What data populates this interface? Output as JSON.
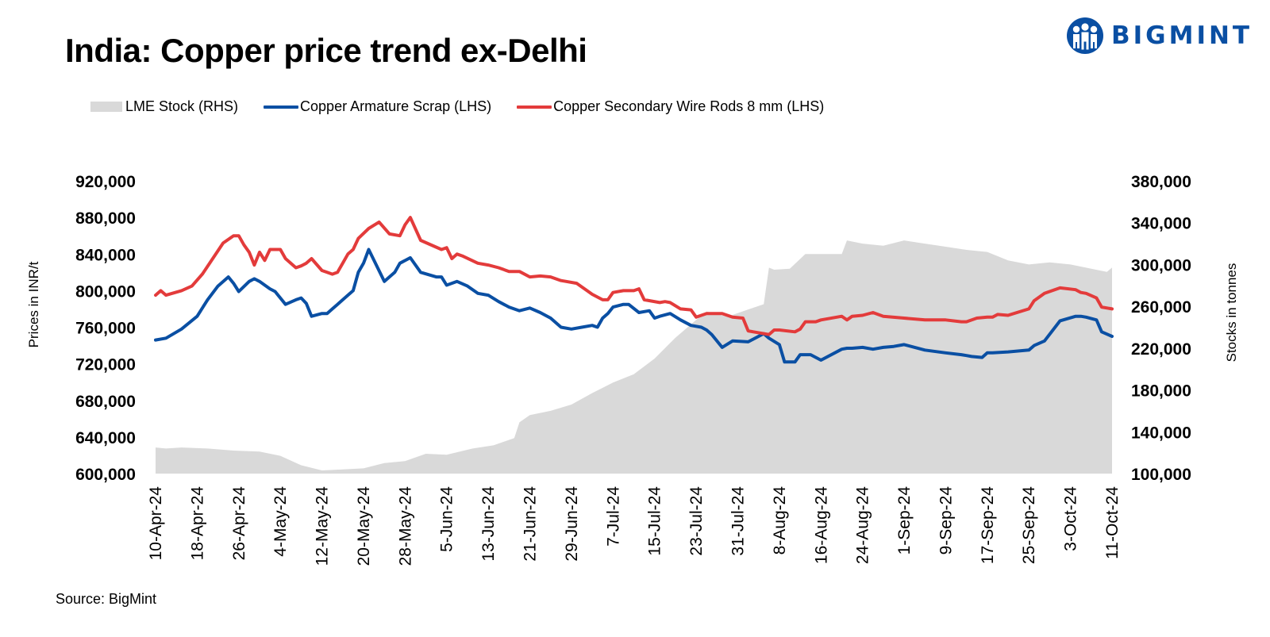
{
  "header": {
    "title": "India: Copper price trend ex-Delhi"
  },
  "logo": {
    "text": "BIGMINT",
    "icon": "people-group-icon",
    "color": "#0a4fa3"
  },
  "footer": {
    "source": "Source: BigMint"
  },
  "chart_data": {
    "type": "line",
    "title": "India: Copper price trend ex-Delhi",
    "ylabel": "Prices in INR/t",
    "y2label": "Stocks in tonnes",
    "ylim": [
      600000,
      920000
    ],
    "y2lim": [
      100000,
      380000
    ],
    "yticks": [
      "600,000",
      "640,000",
      "680,000",
      "720,000",
      "760,000",
      "800,000",
      "840,000",
      "880,000",
      "920,000"
    ],
    "y2ticks": [
      "100,000",
      "140,000",
      "180,000",
      "220,000",
      "260,000",
      "300,000",
      "340,000",
      "380,000"
    ],
    "x_start": "2024-04-10",
    "x_end": "2024-10-11",
    "xticks": [
      "10-Apr-24",
      "18-Apr-24",
      "26-Apr-24",
      "4-May-24",
      "12-May-24",
      "20-May-24",
      "28-May-24",
      "5-Jun-24",
      "13-Jun-24",
      "21-Jun-24",
      "29-Jun-24",
      "7-Jul-24",
      "15-Jul-24",
      "23-Jul-24",
      "31-Jul-24",
      "8-Aug-24",
      "16-Aug-24",
      "24-Aug-24",
      "1-Sep-24",
      "9-Sep-24",
      "17-Sep-24",
      "25-Sep-24",
      "3-Oct-24",
      "11-Oct-24"
    ],
    "legend_position": "top",
    "series": [
      {
        "name": "LME Stock (RHS)",
        "type": "area",
        "axis": "right",
        "color": "#d9d9d9",
        "x": [
          "2024-04-10",
          "2024-04-12",
          "2024-04-15",
          "2024-04-20",
          "2024-04-25",
          "2024-04-30",
          "2024-05-04",
          "2024-05-08",
          "2024-05-12",
          "2024-05-16",
          "2024-05-20",
          "2024-05-24",
          "2024-05-28",
          "2024-06-01",
          "2024-06-05",
          "2024-06-10",
          "2024-06-14",
          "2024-06-18",
          "2024-06-19",
          "2024-06-21",
          "2024-06-25",
          "2024-06-29",
          "2024-07-03",
          "2024-07-07",
          "2024-07-11",
          "2024-07-15",
          "2024-07-19",
          "2024-07-23",
          "2024-07-25",
          "2024-07-29",
          "2024-08-02",
          "2024-08-05",
          "2024-08-06",
          "2024-08-07",
          "2024-08-10",
          "2024-08-13",
          "2024-08-16",
          "2024-08-20",
          "2024-08-21",
          "2024-08-24",
          "2024-08-28",
          "2024-09-01",
          "2024-09-05",
          "2024-09-09",
          "2024-09-13",
          "2024-09-17",
          "2024-09-21",
          "2024-09-25",
          "2024-09-29",
          "2024-10-03",
          "2024-10-07",
          "2024-10-10",
          "2024-10-11"
        ],
        "values": [
          125000,
          124000,
          125000,
          124000,
          122000,
          121000,
          117000,
          108000,
          103000,
          104000,
          105000,
          110000,
          112000,
          119000,
          118000,
          124000,
          127000,
          134000,
          149000,
          156000,
          160000,
          166000,
          177000,
          187000,
          195000,
          210000,
          230000,
          247000,
          255000,
          250000,
          257000,
          262000,
          297000,
          295000,
          296000,
          310000,
          310000,
          310000,
          323000,
          320000,
          318000,
          323000,
          320000,
          317000,
          314000,
          312000,
          304000,
          300000,
          302000,
          300000,
          296000,
          293000,
          297000
        ]
      },
      {
        "name": "Copper Armature Scrap (LHS)",
        "type": "line",
        "axis": "left",
        "color": "#0a4fa3",
        "x": [
          "2024-04-10",
          "2024-04-12",
          "2024-04-15",
          "2024-04-18",
          "2024-04-20",
          "2024-04-22",
          "2024-04-24",
          "2024-04-25",
          "2024-04-26",
          "2024-04-28",
          "2024-04-29",
          "2024-04-30",
          "2024-05-02",
          "2024-05-03",
          "2024-05-05",
          "2024-05-07",
          "2024-05-08",
          "2024-05-09",
          "2024-05-10",
          "2024-05-12",
          "2024-05-13",
          "2024-05-14",
          "2024-05-15",
          "2024-05-17",
          "2024-05-18",
          "2024-05-19",
          "2024-05-20",
          "2024-05-21",
          "2024-05-24",
          "2024-05-26",
          "2024-05-27",
          "2024-05-29",
          "2024-05-31",
          "2024-06-03",
          "2024-06-04",
          "2024-06-05",
          "2024-06-07",
          "2024-06-09",
          "2024-06-11",
          "2024-06-13",
          "2024-06-15",
          "2024-06-17",
          "2024-06-19",
          "2024-06-21",
          "2024-06-23",
          "2024-06-25",
          "2024-06-27",
          "2024-06-29",
          "2024-07-01",
          "2024-07-03",
          "2024-07-04",
          "2024-07-05",
          "2024-07-06",
          "2024-07-07",
          "2024-07-09",
          "2024-07-10",
          "2024-07-12",
          "2024-07-14",
          "2024-07-15",
          "2024-07-16",
          "2024-07-18",
          "2024-07-20",
          "2024-07-22",
          "2024-07-24",
          "2024-07-25",
          "2024-07-26",
          "2024-07-28",
          "2024-07-30",
          "2024-08-02",
          "2024-08-04",
          "2024-08-05",
          "2024-08-06",
          "2024-08-08",
          "2024-08-09",
          "2024-08-11",
          "2024-08-12",
          "2024-08-13",
          "2024-08-14",
          "2024-08-16",
          "2024-08-20",
          "2024-08-21",
          "2024-08-22",
          "2024-08-24",
          "2024-08-26",
          "2024-08-28",
          "2024-08-30",
          "2024-09-01",
          "2024-09-05",
          "2024-09-09",
          "2024-09-12",
          "2024-09-13",
          "2024-09-14",
          "2024-09-16",
          "2024-09-17",
          "2024-09-18",
          "2024-09-21",
          "2024-09-25",
          "2024-09-26",
          "2024-09-28",
          "2024-10-01",
          "2024-10-04",
          "2024-10-05",
          "2024-10-06",
          "2024-10-08",
          "2024-10-09",
          "2024-10-11"
        ],
        "values": [
          746000,
          748000,
          758000,
          772000,
          790000,
          805000,
          815000,
          808000,
          799000,
          810000,
          813000,
          810000,
          802000,
          799000,
          785000,
          790000,
          792000,
          786000,
          772000,
          775000,
          775000,
          780000,
          785000,
          795000,
          800000,
          820000,
          830000,
          845000,
          810000,
          820000,
          830000,
          836000,
          820000,
          815000,
          815000,
          806000,
          810000,
          805000,
          797000,
          795000,
          788000,
          782000,
          778000,
          781000,
          776000,
          770000,
          760000,
          758000,
          760000,
          762000,
          760000,
          770000,
          775000,
          782000,
          785000,
          785000,
          776000,
          778000,
          770000,
          772000,
          775000,
          768000,
          762000,
          760000,
          757000,
          752000,
          738000,
          745000,
          744000,
          750000,
          753000,
          748000,
          741000,
          722000,
          722000,
          730000,
          730000,
          730000,
          724000,
          736000,
          737000,
          737000,
          738000,
          736000,
          738000,
          739000,
          741000,
          735000,
          732000,
          730000,
          729000,
          728000,
          727000,
          732000,
          732000,
          733000,
          735000,
          740000,
          745000,
          767000,
          772000,
          772000,
          771000,
          768000,
          755000,
          750000
        ]
      },
      {
        "name": "Copper Secondary Wire Rods 8 mm (LHS)",
        "type": "line",
        "axis": "left",
        "color": "#e33b3b",
        "x": [
          "2024-04-10",
          "2024-04-11",
          "2024-04-12",
          "2024-04-15",
          "2024-04-17",
          "2024-04-19",
          "2024-04-21",
          "2024-04-23",
          "2024-04-25",
          "2024-04-26",
          "2024-04-27",
          "2024-04-28",
          "2024-04-29",
          "2024-04-30",
          "2024-05-01",
          "2024-05-02",
          "2024-05-04",
          "2024-05-05",
          "2024-05-07",
          "2024-05-08",
          "2024-05-09",
          "2024-05-10",
          "2024-05-12",
          "2024-05-13",
          "2024-05-14",
          "2024-05-15",
          "2024-05-16",
          "2024-05-17",
          "2024-05-18",
          "2024-05-19",
          "2024-05-21",
          "2024-05-23",
          "2024-05-25",
          "2024-05-27",
          "2024-05-28",
          "2024-05-29",
          "2024-05-31",
          "2024-06-04",
          "2024-06-05",
          "2024-06-06",
          "2024-06-07",
          "2024-06-08",
          "2024-06-11",
          "2024-06-13",
          "2024-06-15",
          "2024-06-17",
          "2024-06-19",
          "2024-06-21",
          "2024-06-23",
          "2024-06-25",
          "2024-06-27",
          "2024-06-28",
          "2024-06-30",
          "2024-07-02",
          "2024-07-03",
          "2024-07-05",
          "2024-07-06",
          "2024-07-07",
          "2024-07-09",
          "2024-07-11",
          "2024-07-12",
          "2024-07-13",
          "2024-07-16",
          "2024-07-17",
          "2024-07-18",
          "2024-07-20",
          "2024-07-22",
          "2024-07-23",
          "2024-07-25",
          "2024-07-26",
          "2024-07-28",
          "2024-07-30",
          "2024-08-01",
          "2024-08-02",
          "2024-08-03",
          "2024-08-06",
          "2024-08-07",
          "2024-08-08",
          "2024-08-11",
          "2024-08-12",
          "2024-08-13",
          "2024-08-15",
          "2024-08-16",
          "2024-08-20",
          "2024-08-21",
          "2024-08-22",
          "2024-08-24",
          "2024-08-26",
          "2024-08-28",
          "2024-09-01",
          "2024-09-05",
          "2024-09-09",
          "2024-09-12",
          "2024-09-13",
          "2024-09-15",
          "2024-09-17",
          "2024-09-18",
          "2024-09-19",
          "2024-09-21",
          "2024-09-25",
          "2024-09-26",
          "2024-09-28",
          "2024-10-01",
          "2024-10-04",
          "2024-10-05",
          "2024-10-06",
          "2024-10-08",
          "2024-10-09",
          "2024-10-11"
        ],
        "values": [
          795000,
          800000,
          795000,
          800000,
          805000,
          818000,
          835000,
          852000,
          860000,
          860000,
          850000,
          842000,
          828000,
          842000,
          833000,
          845000,
          845000,
          835000,
          825000,
          827000,
          830000,
          835000,
          822000,
          820000,
          818000,
          820000,
          830000,
          840000,
          845000,
          857000,
          868000,
          875000,
          862000,
          860000,
          872000,
          880000,
          855000,
          845000,
          847000,
          835000,
          840000,
          838000,
          830000,
          828000,
          825000,
          821000,
          821000,
          815000,
          816000,
          815000,
          811000,
          810000,
          808000,
          800000,
          796000,
          790000,
          790000,
          798000,
          800000,
          800000,
          802000,
          790000,
          787000,
          788000,
          787000,
          780000,
          779000,
          771000,
          775000,
          775000,
          775000,
          771000,
          770000,
          756000,
          755000,
          752000,
          757000,
          757000,
          755000,
          758000,
          766000,
          766000,
          768000,
          772000,
          768000,
          772000,
          773000,
          776000,
          772000,
          770000,
          768000,
          768000,
          766000,
          766000,
          770000,
          771000,
          771000,
          774000,
          773000,
          780000,
          789000,
          797000,
          803000,
          801000,
          798000,
          797000,
          792000,
          782000,
          780000
        ]
      }
    ]
  }
}
